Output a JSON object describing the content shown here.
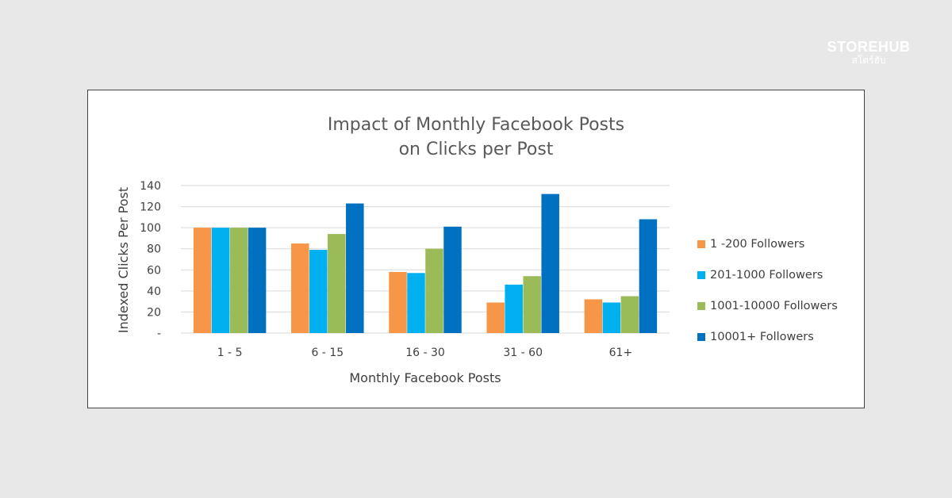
{
  "brand": {
    "name": "STOREHUB",
    "subtitle": "สโตร์ฮับ"
  },
  "chart_data": {
    "type": "bar",
    "title": "Impact of Monthly Facebook Posts",
    "title_line2": "on Clicks per Post",
    "xlabel": "Monthly Facebook Posts",
    "ylabel": "Indexed Clicks Per Post",
    "ylim": [
      0,
      140
    ],
    "yticks": [
      0,
      20,
      40,
      60,
      80,
      100,
      120,
      140
    ],
    "ytick_labels": [
      "-",
      "20",
      "40",
      "60",
      "80",
      "100",
      "120",
      "140"
    ],
    "grid": true,
    "legend_position": "right",
    "categories": [
      "1 - 5",
      "6 - 15",
      "16 - 30",
      "31 - 60",
      "61+"
    ],
    "series": [
      {
        "name": "1 -200 Followers",
        "color": "#f79646",
        "values": [
          100,
          85,
          58,
          29,
          32
        ]
      },
      {
        "name": "201-1000 Followers",
        "color": "#00b0f0",
        "values": [
          100,
          79,
          57,
          46,
          29
        ]
      },
      {
        "name": "1001-10000 Followers",
        "color": "#9bbb59",
        "values": [
          100,
          94,
          80,
          54,
          35
        ]
      },
      {
        "name": "10001+ Followers",
        "color": "#0070c0",
        "values": [
          100,
          123,
          101,
          132,
          108
        ]
      }
    ]
  }
}
